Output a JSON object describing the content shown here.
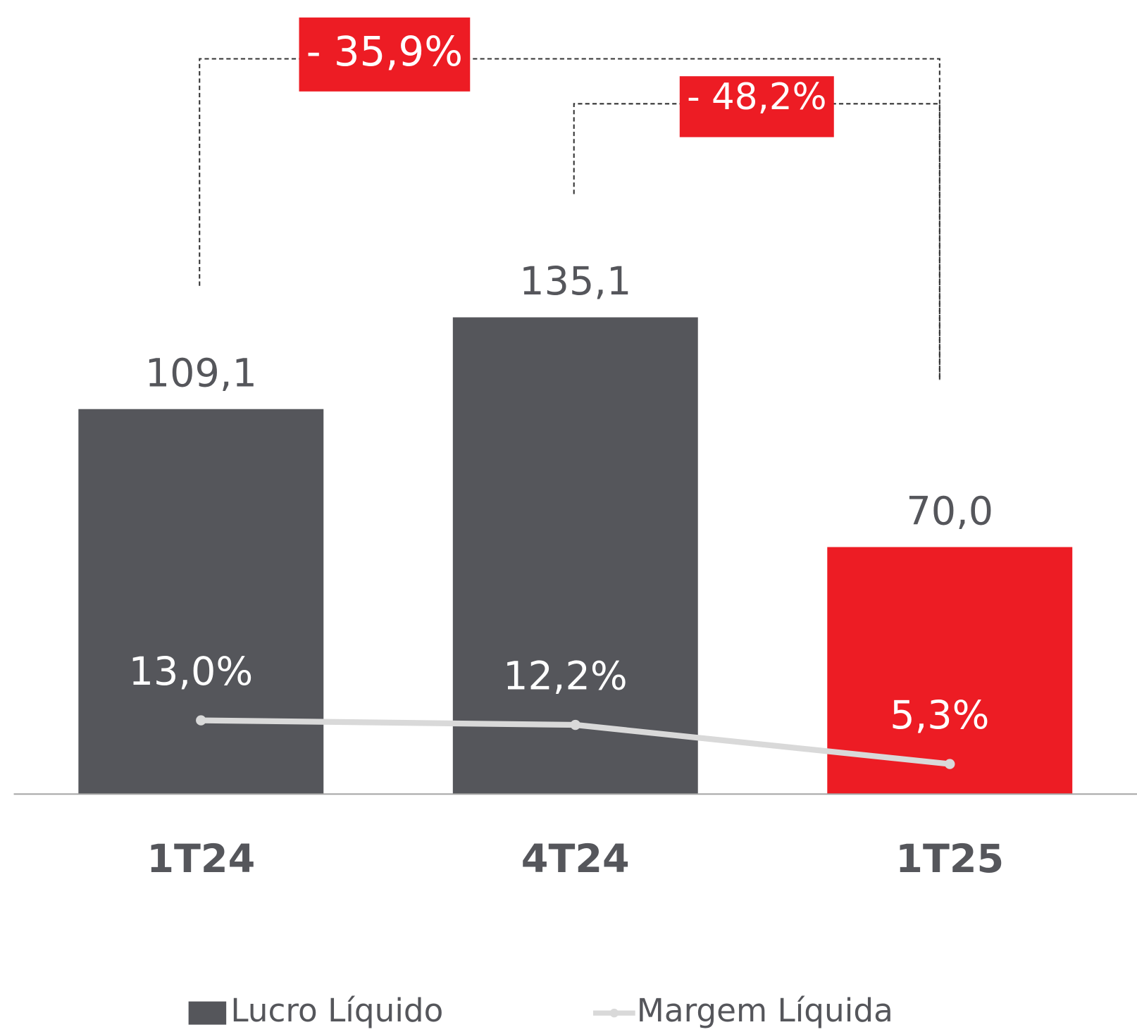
{
  "chart_data": {
    "type": "bar",
    "categories": [
      "1T24",
      "4T24",
      "1T25"
    ],
    "ylim": [
      0,
      225
    ],
    "y2lim": [
      0,
      140
    ],
    "series": [
      {
        "name": "Lucro Líquido",
        "type": "bar",
        "color": "#55565b",
        "colors": [
          "#55565b",
          "#55565b",
          "#ed1c24"
        ],
        "values": [
          109.1,
          135.1,
          70.0
        ],
        "value_labels": [
          "109,1",
          "135,1",
          "70,0"
        ]
      },
      {
        "name": "Margem Líquida",
        "type": "line",
        "axis": "y2",
        "color": "#d9d9d9",
        "values": [
          13.0,
          12.2,
          5.3
        ],
        "value_labels": [
          "13,0%",
          "12,2%",
          "5,3%"
        ]
      }
    ],
    "annotations": [
      {
        "text": "- 35,9%",
        "from": "1T24",
        "to": "1T25"
      },
      {
        "text": "- 48,2%",
        "from": "4T24",
        "to": "1T25"
      }
    ],
    "legend": "bottom"
  }
}
